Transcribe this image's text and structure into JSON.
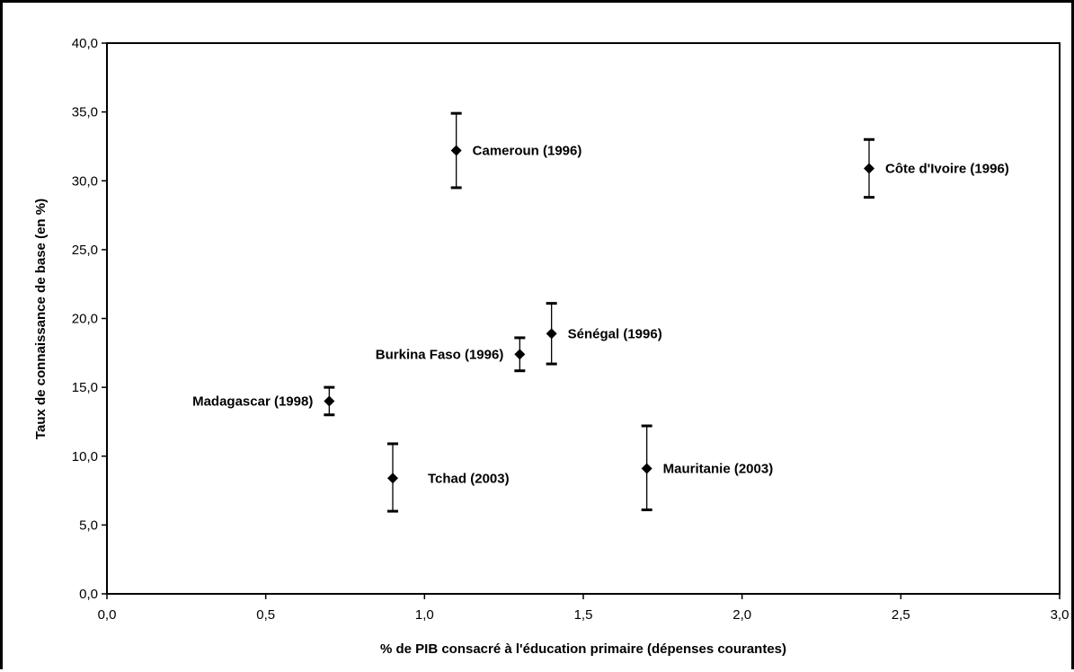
{
  "chart_data": {
    "type": "scatter",
    "title": "",
    "xlabel": "% de PIB consacré à l'éducation primaire (dépenses courantes)",
    "ylabel": "Taux de connaissance de base (en %)",
    "xlim": [
      0,
      3
    ],
    "ylim": [
      0,
      40
    ],
    "x_ticks": [
      "0,0",
      "0,5",
      "1,0",
      "1,5",
      "2,0",
      "2,5",
      "3,0"
    ],
    "y_ticks": [
      "0,0",
      "5,0",
      "10,0",
      "15,0",
      "20,0",
      "25,0",
      "30,0",
      "35,0",
      "40,0"
    ],
    "grid": false,
    "legend": "none",
    "marker_color": "#000000",
    "points": [
      {
        "label": "Cameroun (1996)",
        "x": 1.1,
        "y": 32.2,
        "y_low": 29.5,
        "y_high": 34.9,
        "label_side": "right"
      },
      {
        "label": "Côte d'Ivoire (1996)",
        "x": 2.4,
        "y": 30.9,
        "y_low": 28.8,
        "y_high": 33.0,
        "label_side": "right"
      },
      {
        "label": "Sénégal (1996)",
        "x": 1.4,
        "y": 18.9,
        "y_low": 16.7,
        "y_high": 21.1,
        "label_side": "right"
      },
      {
        "label": "Burkina Faso (1996)",
        "x": 1.3,
        "y": 17.4,
        "y_low": 16.2,
        "y_high": 18.6,
        "label_side": "left"
      },
      {
        "label": "Madagascar (1998)",
        "x": 0.7,
        "y": 14.0,
        "y_low": 13.0,
        "y_high": 15.0,
        "label_side": "left"
      },
      {
        "label": "Tchad (2003)",
        "x": 0.9,
        "y": 8.4,
        "y_low": 6.0,
        "y_high": 10.9,
        "label_side": "right-far"
      },
      {
        "label": "Mauritanie (2003)",
        "x": 1.7,
        "y": 9.1,
        "y_low": 6.1,
        "y_high": 12.2,
        "label_side": "right"
      }
    ]
  }
}
